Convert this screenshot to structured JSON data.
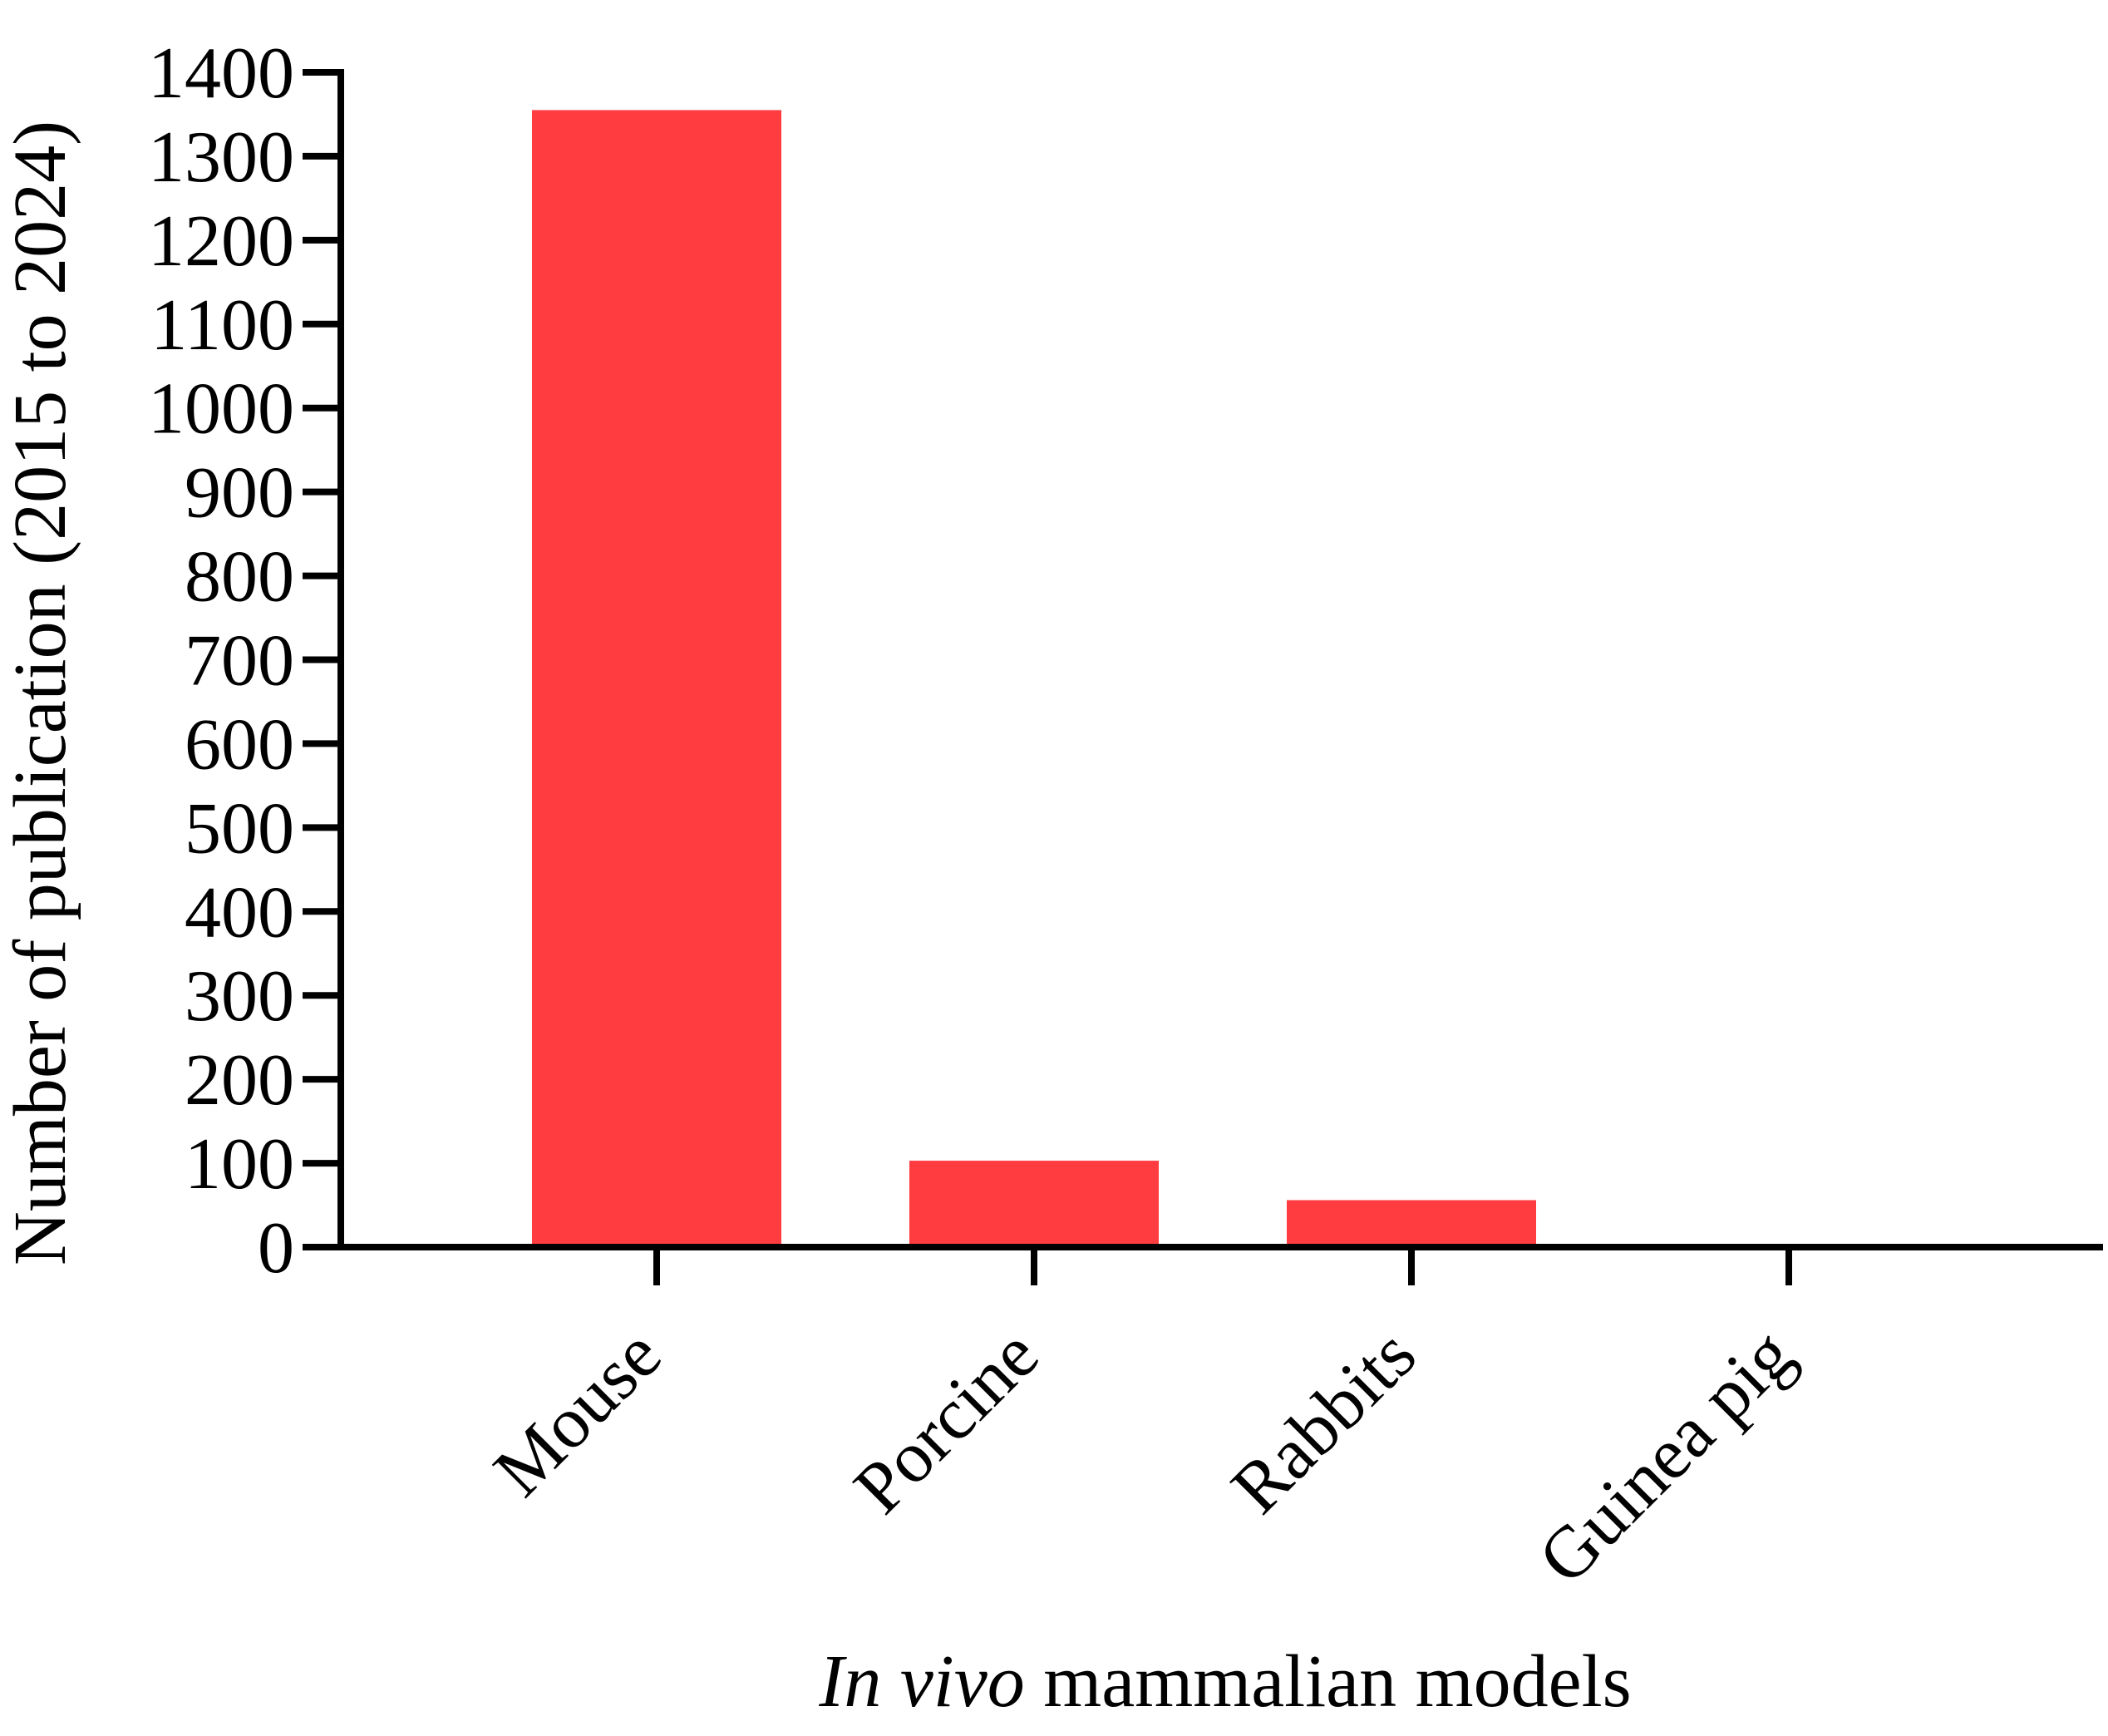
{
  "chart_data": {
    "type": "bar",
    "title": "",
    "categories": [
      "Mouse",
      "Porcine",
      "Rabbits",
      "Guinea pig"
    ],
    "values": [
      1355,
      103,
      56,
      1
    ],
    "ylabel": "Number of publication (2015 to 2024)",
    "xlabel_italic": "In vivo",
    "xlabel_rest": " mammalian models",
    "ylim": [
      0,
      1400
    ],
    "yticks": [
      "0",
      "100",
      "200",
      "300",
      "400",
      "500",
      "600",
      "700",
      "800",
      "900",
      "1000",
      "1100",
      "1200",
      "1300",
      "1400"
    ],
    "grid": false,
    "legend": "none",
    "bar_color": "#FF3D40"
  }
}
